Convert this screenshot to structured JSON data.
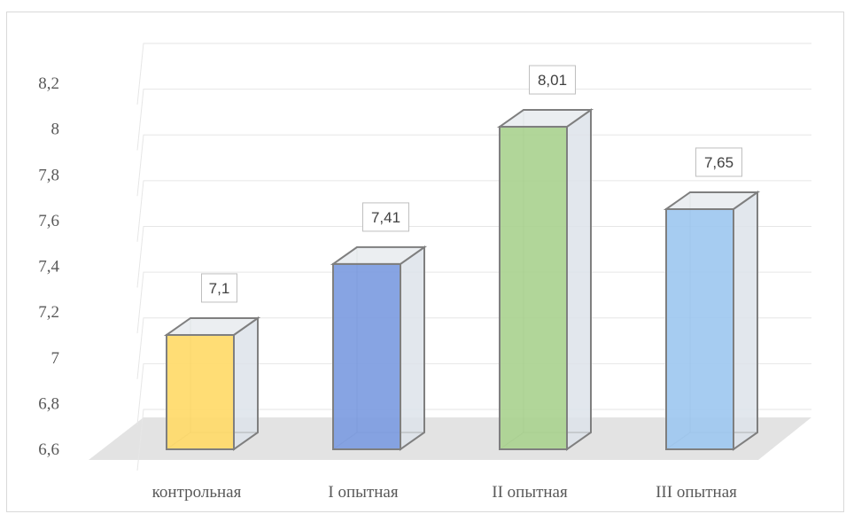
{
  "chart_data": {
    "type": "bar",
    "categories": [
      "контрольная",
      "I опытная",
      "II опытная",
      "III опытная"
    ],
    "values": [
      7.1,
      7.41,
      8.01,
      7.65
    ],
    "data_labels": [
      "7,1",
      "7,41",
      "8,01",
      "7,65"
    ],
    "yticks": [
      6.6,
      6.8,
      7,
      7.2,
      7.4,
      7.6,
      7.8,
      8,
      8.2
    ],
    "ytick_labels": [
      "6,6",
      "6,8",
      "7",
      "7,2",
      "7,4",
      "7,6",
      "7,8",
      "8",
      "8,2"
    ],
    "ylim": [
      6.6,
      8.2
    ],
    "title": "",
    "xlabel": "",
    "ylabel": "",
    "grid": true,
    "legend": "none",
    "style": "3d-column",
    "colors": [
      "#FFD966",
      "#7A9AE0",
      "#A9D18E",
      "#9CC7F0"
    ],
    "side_color": "#DDE3EA",
    "top_color": "#E8EBEF",
    "edge_color": "#7F7F7F",
    "grid_color": "#E6E6E6",
    "floor_color": "#E3E3E3"
  }
}
